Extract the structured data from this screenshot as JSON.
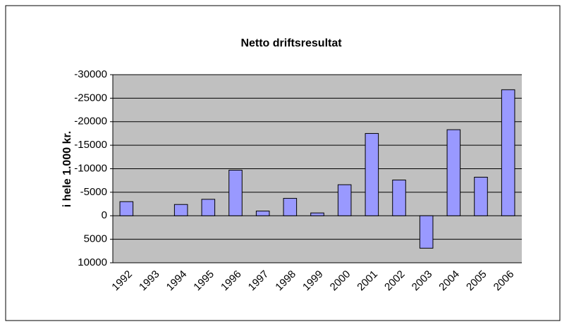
{
  "chart_data": {
    "type": "bar",
    "title": "Netto driftsresultat",
    "y_label": "i hele 1.000 kr.",
    "categories": [
      "1992",
      "1993",
      "1994",
      "1995",
      "1996",
      "1997",
      "1998",
      "1999",
      "2000",
      "2001",
      "2002",
      "2003",
      "2004",
      "2005",
      "2006"
    ],
    "values": [
      -3000,
      0,
      -2400,
      -3500,
      -9700,
      -1000,
      -3700,
      -600,
      -6600,
      -17500,
      -7600,
      6900,
      -18300,
      -8200,
      -26800
    ],
    "color": "#9999ff",
    "ylim": [
      -30000,
      10000
    ],
    "y_reversed": true,
    "yticks": [
      -30000,
      -25000,
      -20000,
      -15000,
      -10000,
      -5000,
      0,
      5000,
      10000
    ],
    "grid": true
  }
}
